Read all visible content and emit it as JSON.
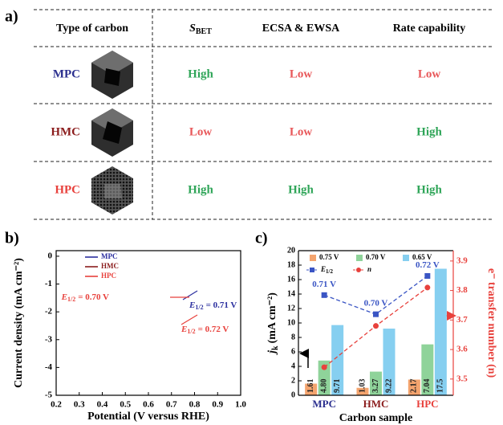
{
  "table": {
    "label": "a)",
    "header": [
      "Type of carbon",
      {
        "symbol": "S",
        "subscript": "BET"
      },
      "ECSA & EWSA",
      "Rate capability"
    ],
    "rows": [
      [
        "MPC",
        "High",
        "Low",
        "Low"
      ],
      [
        "HMC",
        "Low",
        "Low",
        "High"
      ],
      [
        "HPC",
        "High",
        "High",
        "High"
      ]
    ],
    "row_label_colors": [
      "#2b2f8f",
      "#8b1c1c",
      "#e8413c"
    ],
    "level_colors": {
      "High": "#2fa558",
      "Low": "#e8585a"
    }
  },
  "chart_data": [
    {
      "type": "line",
      "label": "b)",
      "xlabel": "Potential (V versus RHE)",
      "ylabel": "Current density (mA cm⁻²)",
      "x": [
        0.2,
        0.3,
        0.4,
        0.5,
        0.55,
        0.6,
        0.65,
        0.7,
        0.72,
        0.75,
        0.78,
        0.8,
        0.85,
        0.9,
        1.0
      ],
      "series": [
        {
          "name": "MPC",
          "color": "#2b2f9f",
          "values": [
            -3.8,
            -3.7,
            -3.6,
            -3.45,
            -3.3,
            -3.05,
            -2.6,
            -1.9,
            -1.5,
            -0.9,
            -0.4,
            -0.15,
            -0.05,
            -0.05,
            -0.05
          ]
        },
        {
          "name": "HMC",
          "color": "#8b1c1c",
          "values": [
            -3.75,
            -3.7,
            -3.65,
            -3.55,
            -3.45,
            -3.25,
            -2.8,
            -2.0,
            -1.6,
            -0.9,
            -0.35,
            -0.15,
            -0.05,
            -0.05,
            -0.05
          ]
        },
        {
          "name": "HPC",
          "color": "#e8413c",
          "values": [
            -4.35,
            -4.4,
            -4.4,
            -4.3,
            -4.2,
            -4.0,
            -3.7,
            -3.1,
            -2.7,
            -1.8,
            -0.9,
            -0.4,
            -0.05,
            -0.05,
            -0.05
          ]
        }
      ],
      "xlim": [
        0.2,
        1.0
      ],
      "xticks": [
        0.2,
        0.3,
        0.4,
        0.5,
        0.6,
        0.7,
        0.8,
        0.9,
        {
          "value": 1,
          "label": "1.0"
        }
      ],
      "ylim": [
        -5,
        0.2
      ],
      "yticks": [
        0,
        -1,
        -2,
        -3,
        -4,
        -5
      ],
      "legend": "upper left",
      "annotations": [
        {
          "symbol": "E",
          "subscript": "1/2",
          "text": "= 0.70 V",
          "color": "#e8413c"
        },
        {
          "symbol": "E",
          "subscript": "1/2",
          "text": "= 0.71 V",
          "color": "#2b2f9f"
        },
        {
          "symbol": "E",
          "subscript": "1/2",
          "text": "= 0.72 V",
          "color": "#e8413c"
        }
      ]
    },
    {
      "type": "bar",
      "label": "c)",
      "xlabel": "Carbon sample",
      "ylabel": {
        "symbol": "j",
        "subscript": "k",
        "text": "(mA cm⁻²)"
      },
      "y2label": "e⁻ transfer number (n)",
      "categories": [
        "MPC",
        "HMC",
        "HPC"
      ],
      "category_colors": [
        "#2b2f8f",
        "#8b1c1c",
        "#e8413c"
      ],
      "series": [
        {
          "name": "0.75 V",
          "color": "#f4a46e",
          "values": [
            1.61,
            1.03,
            2.17
          ],
          "value_labels": [
            "1.61",
            "1.03",
            "2.17"
          ]
        },
        {
          "name": "0.70 V",
          "color": "#8fd39a",
          "values": [
            4.8,
            3.27,
            7.04
          ],
          "value_labels": [
            "4.80",
            "3.27",
            "7.04"
          ]
        },
        {
          "name": "0.65 V",
          "color": "#86cff0",
          "values": [
            9.71,
            9.22,
            17.5
          ],
          "value_labels": [
            "9.71",
            "9.22",
            "17.5"
          ]
        },
        {
          "type": "line",
          "name": "E",
          "name_subscript": "1/2",
          "color": "#3a55c4",
          "marker": "square",
          "values": [
            0.71,
            0.7,
            0.72
          ],
          "value_labels": [
            "0.71 V",
            "0.70 V",
            "0.72 V"
          ],
          "axis": "y3"
        },
        {
          "type": "line",
          "name": "n",
          "color": "#e8413c",
          "marker": "circle",
          "values": [
            3.54,
            3.68,
            3.81
          ],
          "axis": "y2"
        }
      ],
      "ylim": [
        0,
        20
      ],
      "yticks": [
        0,
        2,
        4,
        6,
        8,
        10,
        12,
        14,
        16,
        18,
        20
      ],
      "y2lim": [
        3.445,
        3.935
      ],
      "y2ticks": [
        3.5,
        3.6,
        3.7,
        3.8,
        3.9
      ],
      "y2color": "#e8413c",
      "y3lim": [
        0.6577,
        0.7332
      ],
      "legend": "upper center"
    }
  ]
}
